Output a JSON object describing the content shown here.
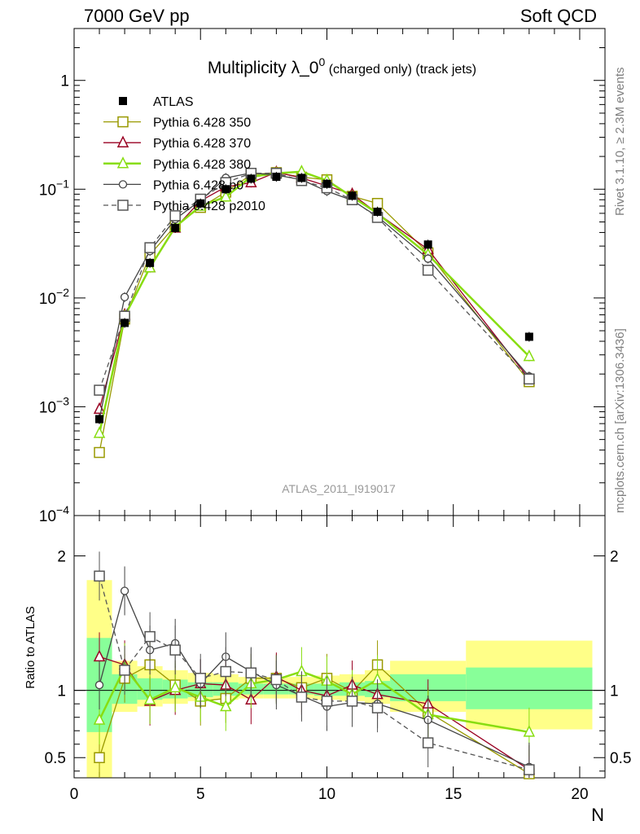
{
  "header": {
    "left": "7000 GeV pp",
    "right": "Soft QCD"
  },
  "side_labels": {
    "top": "Rivet 3.1.10, ≥ 2.3M events",
    "bottom": "mcplots.cern.ch [arXiv:1306.3436]"
  },
  "chart_data": {
    "type": "scatter",
    "title_main": "Multiplicity λ_0",
    "title_sup": "0",
    "title_small": " (charged only) (track jets)",
    "watermark": "ATLAS_2011_I919017",
    "xlabel": "N",
    "ylabel_ratio": "Ratio to ATLAS",
    "xlim": [
      0,
      21
    ],
    "ylim": [
      0.0001,
      3
    ],
    "yscale": "log",
    "ratio_ylim": [
      0.35,
      2.3
    ],
    "x_ticks": [
      "0",
      "5",
      "10",
      "15",
      "20"
    ],
    "y_ticks_main": [
      {
        "base": "10",
        "exp": "−4",
        "v": 0.0001
      },
      {
        "base": "10",
        "exp": "−3",
        "v": 0.001
      },
      {
        "base": "10",
        "exp": "−2",
        "v": 0.01
      },
      {
        "base": "10",
        "exp": "−1",
        "v": 0.1
      },
      {
        "base": "1",
        "exp": "",
        "v": 1
      }
    ],
    "y_ticks_ratio": [
      "0.5",
      "1",
      "2"
    ],
    "ratio_bands": [
      {
        "x": [
          0.5,
          1.5
        ],
        "yellow": [
          0.33,
          1.82
        ],
        "green": [
          0.69,
          1.39
        ]
      },
      {
        "x": [
          1.5,
          2.5
        ],
        "yellow": [
          0.84,
          1.22
        ],
        "green": [
          0.9,
          1.12
        ]
      },
      {
        "x": [
          2.5,
          3.5
        ],
        "yellow": [
          0.88,
          1.18
        ],
        "green": [
          0.93,
          1.09
        ]
      },
      {
        "x": [
          3.5,
          4.5
        ],
        "yellow": [
          0.9,
          1.15
        ],
        "green": [
          0.94,
          1.08
        ]
      },
      {
        "x": [
          4.5,
          5.5
        ],
        "yellow": [
          0.92,
          1.13
        ],
        "green": [
          0.95,
          1.06
        ]
      },
      {
        "x": [
          5.5,
          6.5
        ],
        "yellow": [
          0.93,
          1.12
        ],
        "green": [
          0.96,
          1.06
        ]
      },
      {
        "x": [
          6.5,
          7.5
        ],
        "yellow": [
          0.94,
          1.1
        ],
        "green": [
          0.97,
          1.05
        ]
      },
      {
        "x": [
          7.5,
          8.5
        ],
        "yellow": [
          0.94,
          1.1
        ],
        "green": [
          0.97,
          1.05
        ]
      },
      {
        "x": [
          8.5,
          9.5
        ],
        "yellow": [
          0.94,
          1.1
        ],
        "green": [
          0.97,
          1.05
        ]
      },
      {
        "x": [
          9.5,
          10.5
        ],
        "yellow": [
          0.93,
          1.11
        ],
        "green": [
          0.96,
          1.05
        ]
      },
      {
        "x": [
          10.5,
          11.5
        ],
        "yellow": [
          0.92,
          1.12
        ],
        "green": [
          0.96,
          1.06
        ]
      },
      {
        "x": [
          11.5,
          12.5
        ],
        "yellow": [
          0.9,
          1.15
        ],
        "green": [
          0.95,
          1.07
        ]
      },
      {
        "x": [
          12.5,
          15.5
        ],
        "yellow": [
          0.84,
          1.22
        ],
        "green": [
          0.92,
          1.12
        ]
      },
      {
        "x": [
          15.5,
          20.5
        ],
        "yellow": [
          0.71,
          1.37
        ],
        "green": [
          0.86,
          1.17
        ]
      }
    ],
    "series": [
      {
        "name": "ATLAS",
        "marker": "filled-square",
        "color": "#000000",
        "dash": "",
        "line": false,
        "x": [
          1,
          2,
          3,
          4,
          5,
          6,
          7,
          8,
          9,
          10,
          11,
          12,
          14,
          18
        ],
        "y": [
          0.00077,
          0.0059,
          0.021,
          0.044,
          0.074,
          0.1,
          0.125,
          0.13,
          0.127,
          0.112,
          0.087,
          0.062,
          0.031,
          0.0044
        ],
        "ratio": []
      },
      {
        "name": "Pythia 6.428 350",
        "marker": "open-square",
        "color": "#999900",
        "dash": "",
        "line": true,
        "x": [
          1,
          2,
          3,
          4,
          5,
          6,
          7,
          8,
          9,
          10,
          11,
          12,
          14,
          18
        ],
        "y": [
          0.00038,
          0.0064,
          0.025,
          0.046,
          0.068,
          0.094,
          0.136,
          0.142,
          0.129,
          0.122,
          0.086,
          0.074,
          0.026,
          0.0017
        ],
        "ratio": [
          0.5,
          1.09,
          1.19,
          1.04,
          0.92,
          0.94,
          1.09,
          1.09,
          1.02,
          1.09,
          0.99,
          1.19,
          0.84,
          0.38
        ]
      },
      {
        "name": "Pythia 6.428 370",
        "marker": "open-triangle",
        "color": "#990022",
        "dash": "",
        "line": true,
        "x": [
          1,
          2,
          3,
          4,
          5,
          6,
          7,
          8,
          9,
          10,
          11,
          12,
          14,
          18
        ],
        "y": [
          0.00095,
          0.007,
          0.019,
          0.044,
          0.078,
          0.105,
          0.115,
          0.143,
          0.127,
          0.107,
          0.09,
          0.06,
          0.028,
          0.0018
        ],
        "ratio": [
          1.25,
          1.19,
          0.92,
          1.0,
          1.05,
          1.04,
          0.93,
          1.1,
          1.0,
          0.96,
          1.04,
          0.97,
          0.9,
          0.41
        ]
      },
      {
        "name": "Pythia 6.428 380",
        "marker": "open-triangle",
        "color": "#88dd11",
        "dash": "",
        "line": true,
        "x": [
          1,
          2,
          3,
          4,
          5,
          6,
          7,
          8,
          9,
          10,
          11,
          12,
          14,
          18
        ],
        "y": [
          0.00057,
          0.0068,
          0.019,
          0.045,
          0.07,
          0.085,
          0.13,
          0.14,
          0.145,
          0.12,
          0.085,
          0.06,
          0.025,
          0.0029
        ],
        "ratio": [
          0.78,
          1.17,
          0.93,
          1.02,
          0.95,
          0.88,
          1.05,
          1.08,
          1.14,
          1.07,
          0.97,
          1.08,
          0.82,
          0.69
        ]
      },
      {
        "name": "Pythia 6.428 p0",
        "marker": "open-circle",
        "color": "#444444",
        "dash": "",
        "line": true,
        "x": [
          1,
          2,
          3,
          4,
          5,
          6,
          7,
          8,
          9,
          10,
          11,
          12,
          14,
          18
        ],
        "y": [
          0.00077,
          0.0102,
          0.027,
          0.053,
          0.079,
          0.127,
          0.141,
          0.135,
          0.122,
          0.096,
          0.079,
          0.056,
          0.023,
          0.0019
        ],
        "ratio": [
          1.04,
          1.74,
          1.3,
          1.35,
          1.05,
          1.25,
          1.14,
          1.04,
          0.96,
          0.88,
          0.91,
          0.9,
          0.78,
          0.43
        ]
      },
      {
        "name": "Pythia 6.428 p2010",
        "marker": "open-square",
        "color": "#555555",
        "dash": "6,4",
        "line": true,
        "x": [
          1,
          2,
          3,
          4,
          5,
          6,
          7,
          8,
          9,
          10,
          11,
          12,
          14,
          18
        ],
        "y": [
          0.00142,
          0.0068,
          0.029,
          0.057,
          0.081,
          0.115,
          0.14,
          0.14,
          0.12,
          0.103,
          0.08,
          0.055,
          0.018,
          0.0018
        ],
        "ratio": [
          1.85,
          1.15,
          1.4,
          1.3,
          1.09,
          1.14,
          1.13,
          1.08,
          0.95,
          0.92,
          0.92,
          0.87,
          0.61,
          0.41
        ]
      }
    ]
  }
}
